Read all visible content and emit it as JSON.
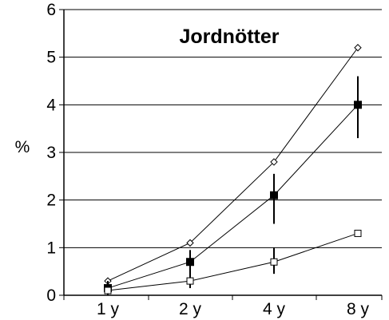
{
  "chart_data": {
    "type": "line",
    "title": "Jordnötter",
    "ylabel": "%",
    "xlabel": "",
    "categories": [
      "1 y",
      "2 y",
      "4 y",
      "8 y"
    ],
    "ylim": [
      0,
      6
    ],
    "yticks": [
      0,
      1,
      2,
      3,
      4,
      5,
      6
    ],
    "grid": "horizontal",
    "series": [
      {
        "marker": "diamond-open",
        "values": [
          0.3,
          1.1,
          2.8,
          5.2
        ],
        "error": [
          null,
          null,
          null,
          null
        ]
      },
      {
        "marker": "square-filled",
        "values": [
          0.15,
          0.7,
          2.1,
          4.0
        ],
        "error": [
          [
            0.0,
            0.3
          ],
          [
            0.45,
            0.95
          ],
          [
            1.5,
            2.55
          ],
          [
            3.3,
            4.6
          ]
        ]
      },
      {
        "marker": "square-open",
        "values": [
          0.1,
          0.3,
          0.7,
          1.3
        ],
        "error": [
          null,
          [
            0.15,
            0.5
          ],
          [
            0.45,
            1.0
          ],
          null
        ]
      }
    ]
  }
}
